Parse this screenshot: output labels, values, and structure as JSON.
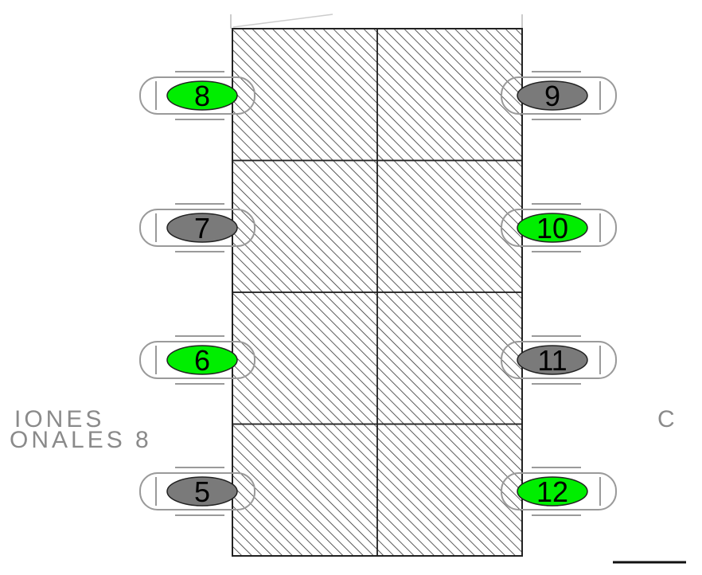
{
  "colors": {
    "available": "#00ee00",
    "occupied": "#7a7a7a",
    "outline": "#222222",
    "chair_outline": "#9a9a9a",
    "hatch": "#333333"
  },
  "table": {
    "columns": 2,
    "rows": 4
  },
  "seats": [
    {
      "number": "8",
      "side": "left",
      "row": 0,
      "status": "available"
    },
    {
      "number": "7",
      "side": "left",
      "row": 1,
      "status": "occupied"
    },
    {
      "number": "6",
      "side": "left",
      "row": 2,
      "status": "available"
    },
    {
      "number": "5",
      "side": "left",
      "row": 3,
      "status": "occupied"
    },
    {
      "number": "9",
      "side": "right",
      "row": 0,
      "status": "occupied"
    },
    {
      "number": "10",
      "side": "right",
      "row": 1,
      "status": "available"
    },
    {
      "number": "11",
      "side": "right",
      "row": 2,
      "status": "occupied"
    },
    {
      "number": "12",
      "side": "right",
      "row": 3,
      "status": "available"
    }
  ],
  "side_text": {
    "left_line1": "IONES",
    "left_line2": "ONALES  8",
    "right": "C"
  }
}
